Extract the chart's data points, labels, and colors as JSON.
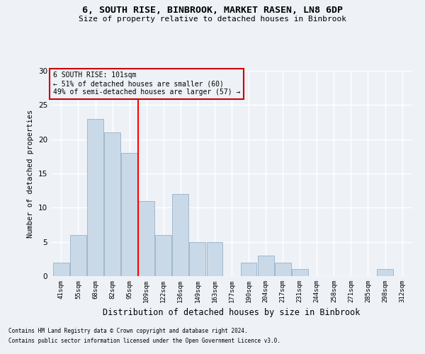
{
  "title1": "6, SOUTH RISE, BINBROOK, MARKET RASEN, LN8 6DP",
  "title2": "Size of property relative to detached houses in Binbrook",
  "xlabel": "Distribution of detached houses by size in Binbrook",
  "ylabel": "Number of detached properties",
  "categories": [
    "41sqm",
    "55sqm",
    "68sqm",
    "82sqm",
    "95sqm",
    "109sqm",
    "122sqm",
    "136sqm",
    "149sqm",
    "163sqm",
    "177sqm",
    "190sqm",
    "204sqm",
    "217sqm",
    "231sqm",
    "244sqm",
    "258sqm",
    "271sqm",
    "285sqm",
    "298sqm",
    "312sqm"
  ],
  "values": [
    2,
    6,
    23,
    21,
    18,
    11,
    6,
    12,
    5,
    5,
    0,
    2,
    3,
    2,
    1,
    0,
    0,
    0,
    0,
    1,
    0
  ],
  "bar_color": "#c9d9e8",
  "bar_edgecolor": "#a0b8cc",
  "property_line_x": 4.5,
  "property_label": "6 SOUTH RISE: 101sqm",
  "pct_smaller": "51% of detached houses are smaller (60)",
  "pct_larger": "49% of semi-detached houses are larger (57)",
  "annotation_box_color": "#cc0000",
  "ylim": [
    0,
    30
  ],
  "yticks": [
    0,
    5,
    10,
    15,
    20,
    25,
    30
  ],
  "footer1": "Contains HM Land Registry data © Crown copyright and database right 2024.",
  "footer2": "Contains public sector information licensed under the Open Government Licence v3.0.",
  "background_color": "#eef2f7",
  "grid_color": "#ffffff"
}
